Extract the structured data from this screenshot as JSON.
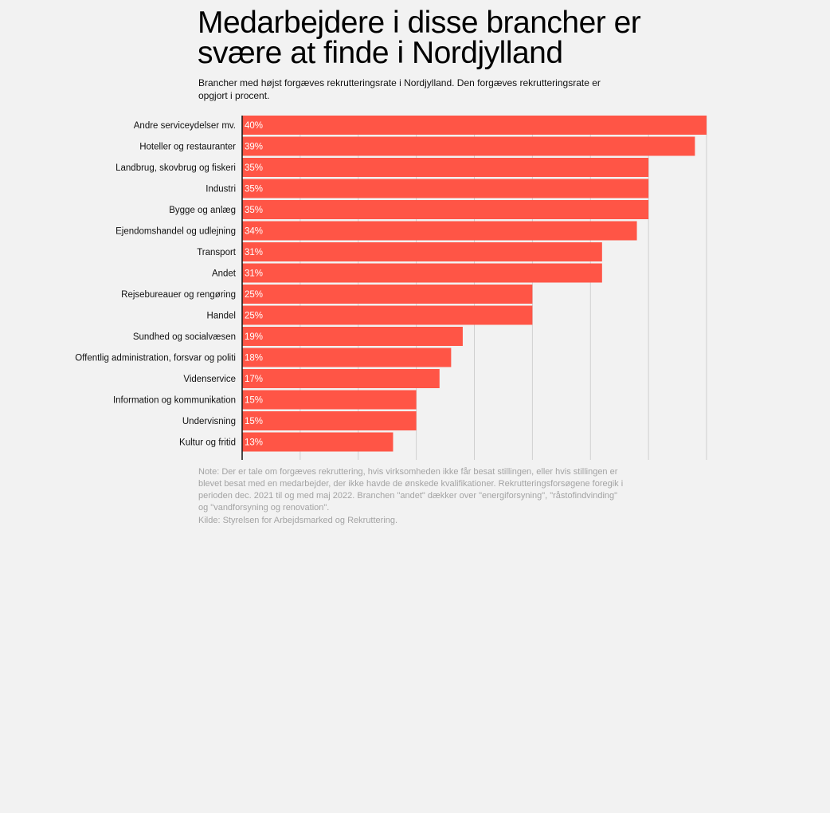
{
  "chart_data": {
    "type": "bar",
    "orientation": "horizontal",
    "title": "Medarbejdere i disse brancher er svære at finde i Nordjylland",
    "subtitle": "Brancher med højst forgæves rekrutteringsrate i Nordjylland. Den forgæves rekrutteringsrate er opgjort i procent.",
    "categories": [
      "Andre serviceydelser mv.",
      "Hoteller og restauranter",
      "Landbrug, skovbrug og fiskeri",
      "Industri",
      "Bygge og anlæg",
      "Ejendomshandel og udlejning",
      "Transport",
      "Andet",
      "Rejsebureauer og rengøring",
      "Handel",
      "Sundhed og socialvæsen",
      "Offentlig administration, forsvar og politi",
      "Videnservice",
      "Information og kommunikation",
      "Undervisning",
      "Kultur og fritid"
    ],
    "values": [
      40,
      39,
      35,
      35,
      35,
      34,
      31,
      31,
      25,
      25,
      19,
      18,
      17,
      15,
      15,
      13
    ],
    "value_suffix": "%",
    "xlim": [
      0,
      40
    ],
    "grid": true,
    "grid_step": 5,
    "bar_color": "#ff5546",
    "note": "Note: Der er tale om forgæves rekruttering, hvis virksomheden ikke får besat stillingen, eller hvis stillingen er blevet besat med en medarbejder, der ikke havde de ønskede kvalifikationer. Rekrutteringsforsøgene foregik i perioden dec. 2021 til og med maj 2022. Branchen \"andet\" dækker over \"energiforsyning\", \"råstofindvinding\" og \"vandforsyning og renovation\".",
    "source": "Kilde: Styrelsen for Arbejdsmarked og Rekruttering."
  }
}
